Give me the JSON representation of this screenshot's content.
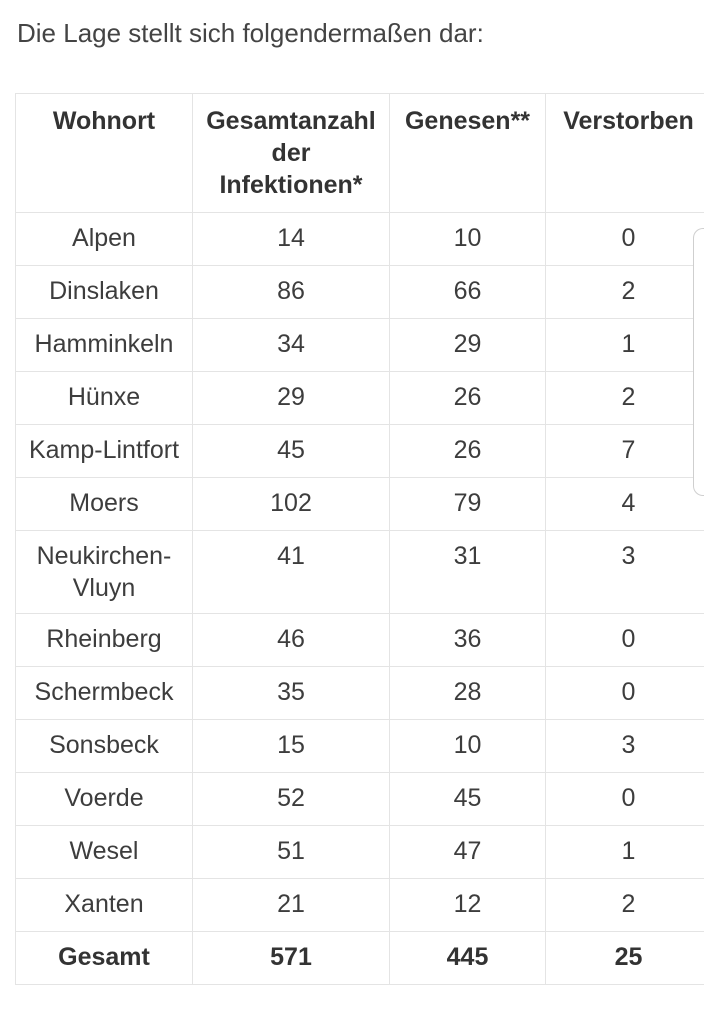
{
  "intro_text": "Die Lage stellt sich folgendermaßen dar:",
  "table": {
    "headers": [
      "Wohnort",
      "Gesamtanzahl der Infektionen*",
      "Genesen**",
      "Verstorben"
    ],
    "rows": [
      [
        "Alpen",
        "14",
        "10",
        "0"
      ],
      [
        "Dinslaken",
        "86",
        "66",
        "2"
      ],
      [
        "Hamminkeln",
        "34",
        "29",
        "1"
      ],
      [
        "Hünxe",
        "29",
        "26",
        "2"
      ],
      [
        "Kamp-Lintfort",
        "45",
        "26",
        "7"
      ],
      [
        "Moers",
        "102",
        "79",
        "4"
      ],
      [
        "Neukirchen-Vluyn",
        "41",
        "31",
        "3"
      ],
      [
        "Rheinberg",
        "46",
        "36",
        "0"
      ],
      [
        "Schermbeck",
        "35",
        "28",
        "0"
      ],
      [
        "Sonsbeck",
        "15",
        "10",
        "3"
      ],
      [
        "Voerde",
        "52",
        "45",
        "0"
      ],
      [
        "Wesel",
        "51",
        "47",
        "1"
      ],
      [
        "Xanten",
        "21",
        "12",
        "2"
      ]
    ],
    "total": [
      "Gesamt",
      "571",
      "445",
      "25"
    ]
  }
}
